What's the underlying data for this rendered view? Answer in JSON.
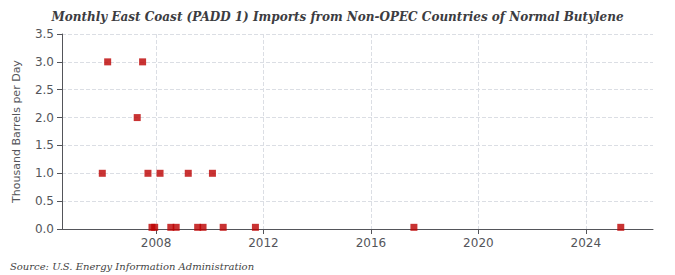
{
  "chart_data": {
    "type": "scatter",
    "title": "Monthly East Coast (PADD 1) Imports from Non-OPEC Countries of Normal Butylene",
    "ylabel": "Thousand Barrels per Day",
    "source": "Source: U.S. Energy Information Administration",
    "x": [
      2006.0,
      2006.2,
      2007.3,
      2007.5,
      2007.7,
      2007.85,
      2007.95,
      2008.15,
      2008.55,
      2008.75,
      2009.2,
      2009.55,
      2009.75,
      2010.1,
      2010.5,
      2011.7,
      2017.6,
      2025.3
    ],
    "values": [
      1.0,
      3.0,
      2.0,
      3.0,
      1.0,
      0.03,
      0.03,
      1.0,
      0.03,
      0.03,
      1.0,
      0.03,
      0.03,
      1.0,
      0.03,
      0.03,
      0.03,
      0.03
    ],
    "color": "#bb0000",
    "marker": "square",
    "xlim": [
      2004.5,
      2026.5
    ],
    "xticks": [
      2008,
      2012,
      2016,
      2020,
      2024
    ],
    "ylim": [
      0.0,
      3.5
    ],
    "yticks": [
      {
        "value": 0,
        "label": "0.0"
      },
      0.5,
      {
        "value": 1,
        "label": "1.0"
      },
      1.5,
      {
        "value": 2,
        "label": "2.0"
      },
      2.5,
      {
        "value": 3,
        "label": "3.0"
      },
      3.5
    ],
    "grid": true
  }
}
